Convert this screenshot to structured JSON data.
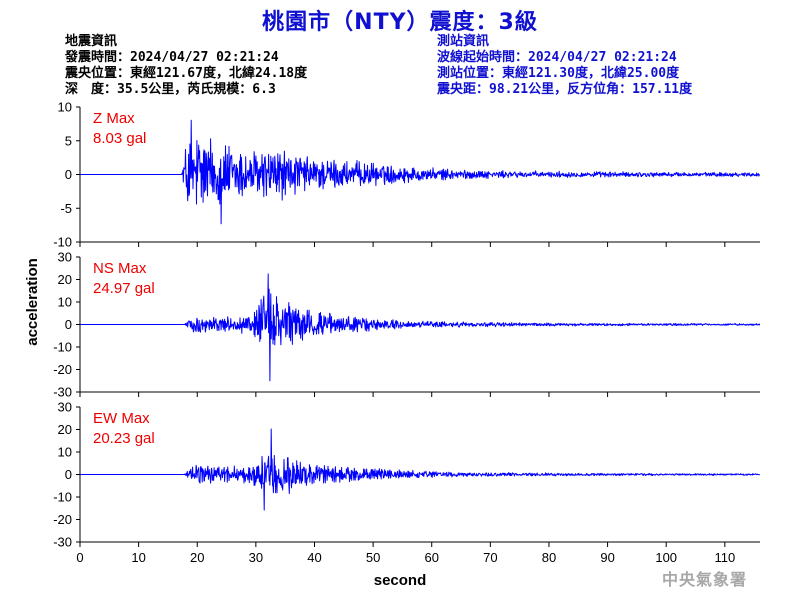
{
  "title": "桃園市（NTY）震度：3級",
  "quake_info": {
    "heading": "地震資訊",
    "time": "發震時間：2024/04/27 02:21:24",
    "epicenter": "震央位置：東經121.67度，北緯24.18度",
    "depth_magnitude": "深　度：35.5公里，芮氏規模：6.3"
  },
  "station_info": {
    "heading": "測站資訊",
    "wave_start": "波線起始時間：2024/04/27 02:21:24",
    "location": "測站位置：東經121.30度，北緯25.00度",
    "distance": "震央距：98.21公里，反方位角：157.11度"
  },
  "watermark": "中央氣象署",
  "colors": {
    "title": "#1010d0",
    "trace": "#0000ff",
    "max_label": "#ee0000",
    "axis": "#000000"
  },
  "chart_data": {
    "type": "line",
    "xlabel": "second",
    "ylabel": "acceleration",
    "xlim": [
      0,
      116
    ],
    "x_ticks": [
      0,
      10,
      20,
      30,
      40,
      50,
      60,
      70,
      80,
      90,
      100,
      110
    ],
    "grid": false,
    "channels": [
      {
        "name": "Z",
        "max_label": "Z Max",
        "max_value": "8.03 gal",
        "ylim": [
          -10,
          10
        ],
        "y_ticks": [
          10,
          5,
          0,
          -5,
          -10
        ],
        "onset_s": 17.5,
        "peak_pos": 8.03,
        "peak_neg": -7.3,
        "envelope": [
          [
            0,
            0
          ],
          [
            17.3,
            0
          ],
          [
            17.8,
            3.5
          ],
          [
            18.5,
            6.2
          ],
          [
            20,
            6.8
          ],
          [
            22,
            5.8
          ],
          [
            24,
            5.0
          ],
          [
            26,
            4.4
          ],
          [
            28,
            3.8
          ],
          [
            30,
            3.6
          ],
          [
            32,
            4.0
          ],
          [
            34,
            3.8
          ],
          [
            36,
            3.2
          ],
          [
            38,
            2.8
          ],
          [
            40,
            2.4
          ],
          [
            43,
            2.3
          ],
          [
            46,
            2.0
          ],
          [
            50,
            1.6
          ],
          [
            55,
            1.2
          ],
          [
            60,
            0.9
          ],
          [
            65,
            0.7
          ],
          [
            70,
            0.55
          ],
          [
            80,
            0.45
          ],
          [
            90,
            0.4
          ],
          [
            100,
            0.35
          ],
          [
            116,
            0.3
          ]
        ]
      },
      {
        "name": "NS",
        "max_label": "NS Max",
        "max_value": "24.97 gal",
        "ylim": [
          -30,
          30
        ],
        "y_ticks": [
          30,
          20,
          10,
          0,
          -10,
          -20,
          -30
        ],
        "onset_s": 18,
        "peak_pos": 22.5,
        "peak_neg": -24.97,
        "envelope": [
          [
            0,
            0
          ],
          [
            17.8,
            0
          ],
          [
            18.5,
            2.5
          ],
          [
            20,
            3.8
          ],
          [
            24,
            3.4
          ],
          [
            27,
            3.2
          ],
          [
            29,
            4.5
          ],
          [
            30.5,
            9
          ],
          [
            31.5,
            15
          ],
          [
            32.5,
            17
          ],
          [
            33.5,
            13
          ],
          [
            35,
            9.5
          ],
          [
            37,
            8.5
          ],
          [
            39,
            6.5
          ],
          [
            42,
            4.8
          ],
          [
            45,
            3.6
          ],
          [
            48,
            3.0
          ],
          [
            52,
            2.2
          ],
          [
            56,
            1.8
          ],
          [
            60,
            1.4
          ],
          [
            65,
            1.1
          ],
          [
            70,
            0.9
          ],
          [
            80,
            0.7
          ],
          [
            90,
            0.55
          ],
          [
            100,
            0.45
          ],
          [
            116,
            0.4
          ]
        ]
      },
      {
        "name": "EW",
        "max_label": "EW Max",
        "max_value": "20.23 gal",
        "ylim": [
          -30,
          30
        ],
        "y_ticks": [
          30,
          20,
          10,
          0,
          -10,
          -20,
          -30
        ],
        "onset_s": 18,
        "peak_pos": 20.23,
        "peak_neg": -15.8,
        "envelope": [
          [
            0,
            0
          ],
          [
            17.8,
            0
          ],
          [
            18.5,
            3.0
          ],
          [
            20,
            4.5
          ],
          [
            23,
            4.2
          ],
          [
            26,
            3.8
          ],
          [
            29,
            4.2
          ],
          [
            30.5,
            7
          ],
          [
            31.5,
            11
          ],
          [
            32.5,
            13
          ],
          [
            33.5,
            12
          ],
          [
            35,
            8.5
          ],
          [
            37,
            6.5
          ],
          [
            39,
            5.2
          ],
          [
            42,
            4.2
          ],
          [
            45,
            3.5
          ],
          [
            48,
            2.8
          ],
          [
            52,
            2.2
          ],
          [
            56,
            1.7
          ],
          [
            60,
            1.3
          ],
          [
            65,
            1.0
          ],
          [
            70,
            0.85
          ],
          [
            80,
            0.65
          ],
          [
            90,
            0.5
          ],
          [
            100,
            0.4
          ],
          [
            116,
            0.35
          ]
        ]
      }
    ]
  }
}
